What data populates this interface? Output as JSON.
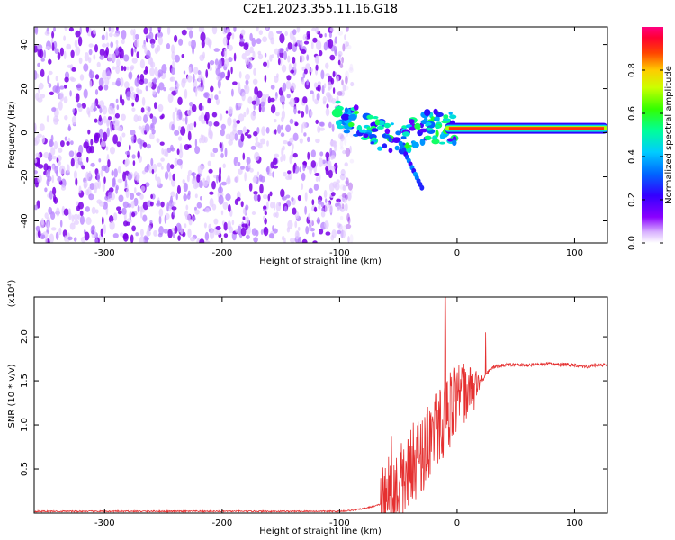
{
  "title": "C2E1.2023.355.11.16.G18",
  "colors": {
    "snr_line": "#e53030",
    "spectrogram_low": "#7a00e6",
    "spectrogram_mid": "#00ff88",
    "spectrogram_high": "#ff2020"
  },
  "chart_data": [
    {
      "type": "heatmap",
      "title": "C2E1.2023.355.11.16.G18",
      "xlabel": "Height of straight line (km)",
      "ylabel": "Frequency (Hz)",
      "xlim": [
        -360,
        128
      ],
      "ylim": [
        -50,
        48
      ],
      "xticks": [
        -300,
        -200,
        -100,
        0,
        100
      ],
      "xtick_labels": [
        "-300",
        "-200",
        "-100",
        "0",
        "100"
      ],
      "yticks": [
        -40,
        -20,
        0,
        20,
        40
      ],
      "ytick_labels": [
        "-40",
        "-20",
        "0",
        "20",
        "40"
      ],
      "colorbar": {
        "label": "Normalized spectral amplitude",
        "range": [
          0,
          1
        ],
        "ticks": [
          0.0,
          0.2,
          0.4,
          0.6,
          0.8
        ],
        "tick_labels": [
          "0.0",
          "0.2",
          "0.4",
          "0.6",
          "0.8"
        ]
      },
      "features": [
        {
          "name": "noise",
          "x_range": [
            -360,
            -100
          ],
          "freq_range": [
            -50,
            48
          ],
          "amplitude": 0.08
        },
        {
          "name": "transition",
          "x": [
            -102,
            -90,
            -75,
            -60,
            -45,
            -30,
            -20,
            -10,
            0
          ],
          "freq": [
            9,
            6,
            2,
            -3,
            -2,
            2,
            3,
            2,
            2
          ],
          "amplitude": 0.4
        },
        {
          "name": "carrier",
          "x_range": [
            -10,
            128
          ],
          "freq": 2,
          "amplitude": 1.0
        }
      ]
    },
    {
      "type": "line",
      "xlabel": "Height of straight line (km)",
      "ylabel": "SNR (10 * v/v)",
      "yscale_label": "(x10⁴)",
      "xlim": [
        -360,
        128
      ],
      "ylim": [
        0,
        2.45
      ],
      "xticks": [
        -300,
        -200,
        -100,
        0,
        100
      ],
      "xtick_labels": [
        "-300",
        "-200",
        "-100",
        "0",
        "100"
      ],
      "yticks": [
        0.5,
        1.0,
        1.5,
        2.0
      ],
      "ytick_labels": [
        "0.5",
        "1.0",
        "1.5",
        "2.0"
      ],
      "series": [
        {
          "x": [
            -360,
            -300,
            -200,
            -120,
            -100,
            -90,
            -80,
            -70,
            -60,
            -55,
            -50,
            -45,
            -40,
            -35,
            -30,
            -25,
            -20,
            -15,
            -10,
            -5,
            0,
            5,
            10,
            15,
            20,
            25,
            30,
            40,
            60,
            80,
            100,
            110,
            115,
            120,
            128
          ],
          "y": [
            0.02,
            0.02,
            0.02,
            0.02,
            0.02,
            0.03,
            0.05,
            0.08,
            0.12,
            0.2,
            0.3,
            0.4,
            0.55,
            0.6,
            0.7,
            0.8,
            0.95,
            1.0,
            1.1,
            1.2,
            1.3,
            1.35,
            1.4,
            1.45,
            1.5,
            1.58,
            1.65,
            1.68,
            1.68,
            1.69,
            1.68,
            1.66,
            1.67,
            1.68,
            1.68
          ]
        }
      ]
    }
  ]
}
